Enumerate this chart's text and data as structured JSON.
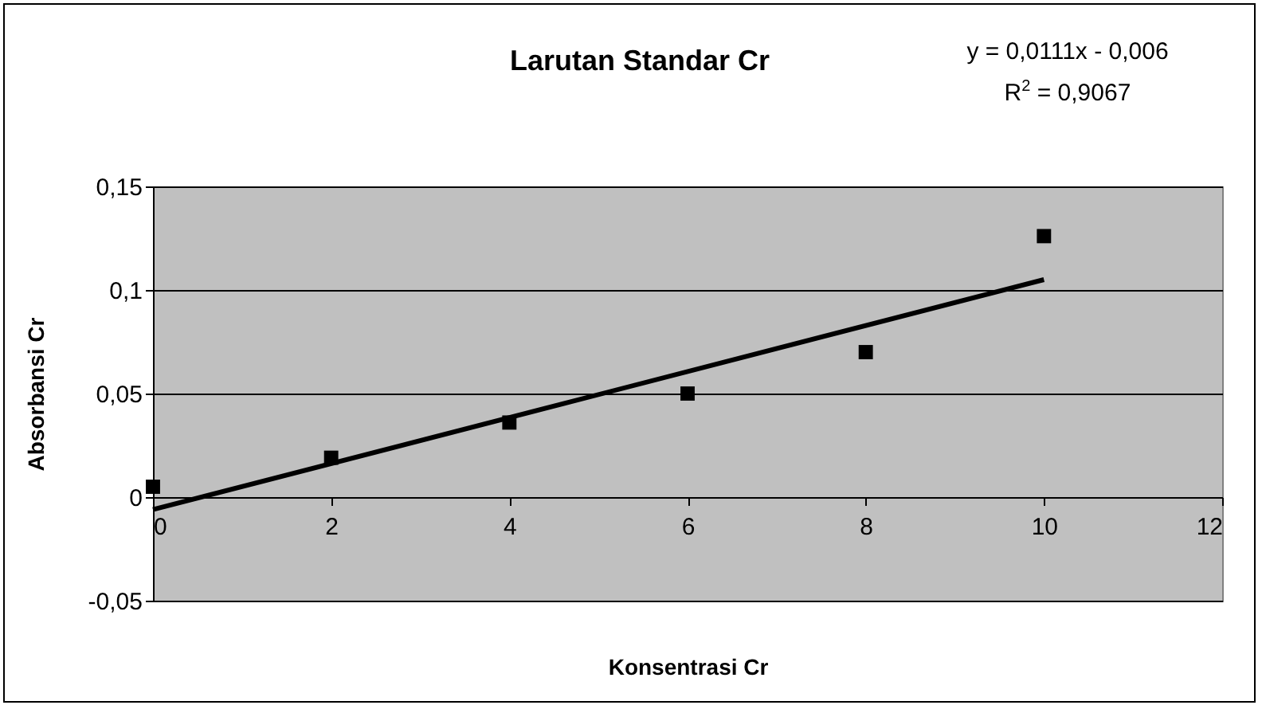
{
  "chart_data": {
    "type": "scatter",
    "title": "Larutan Standar Cr",
    "xlabel": "Konsentrasi Cr",
    "ylabel": "Absorbansi Cr",
    "annotations": [
      "y = 0,0111x - 0,006",
      "R$^{2}$ = 0,9067"
    ],
    "xlim": [
      0,
      12
    ],
    "ylim": [
      -0.05,
      0.15
    ],
    "xticks": [
      0,
      2,
      4,
      6,
      8,
      10,
      12
    ],
    "yticks": [
      {
        "value": -0.05,
        "label": "-0,05"
      },
      0,
      {
        "value": 0.05,
        "label": "0,05"
      },
      {
        "value": 0.1,
        "label": "0,1"
      },
      {
        "value": 0.15,
        "label": "0,15"
      }
    ],
    "grid": "y",
    "x": [
      0,
      2,
      4,
      6,
      8,
      10
    ],
    "series": [
      {
        "type": "scatter",
        "marker": "square",
        "color": "#000000",
        "values": [
          0.005,
          0.019,
          0.036,
          0.05,
          0.07,
          0.126
        ]
      },
      {
        "type": "line",
        "marker": "none",
        "color": "#000000",
        "x": [
          0,
          10
        ],
        "values": [
          -0.006,
          0.105
        ]
      }
    ]
  }
}
